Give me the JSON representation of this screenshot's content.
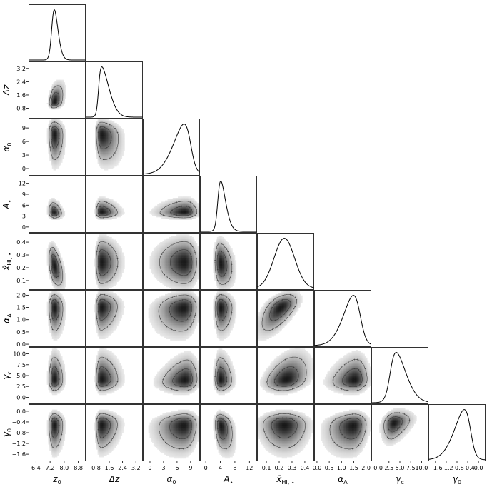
{
  "chart_data": {
    "type": "corner",
    "parameters": [
      {
        "label": "z",
        "sub": "0",
        "ticks": [
          "6.4",
          "7.2",
          "8.0",
          "8.8"
        ],
        "tickvals": [
          6.4,
          7.2,
          8.0,
          8.8
        ],
        "range": [
          6.0,
          9.2
        ],
        "mean": 7.3,
        "sd": 0.28,
        "skew": 2.2
      },
      {
        "label": "Δz",
        "sub": "",
        "ticks": [
          "0.8",
          "1.6",
          "2.4",
          "3.2"
        ],
        "tickvals": [
          0.8,
          1.6,
          2.4,
          3.2
        ],
        "range": [
          0.2,
          3.6
        ],
        "mean": 0.95,
        "sd": 0.55,
        "skew": 5.0
      },
      {
        "label": "α",
        "sub": "0",
        "ticks": [
          "0",
          "3",
          "6",
          "9"
        ],
        "tickvals": [
          0,
          3,
          6,
          9
        ],
        "range": [
          -1.5,
          11.0
        ],
        "mean": 9.0,
        "sd": 3.2,
        "skew": -3.0
      },
      {
        "label": "A",
        "sub": "⋆",
        "ticks": [
          "0",
          "4",
          "8",
          "12"
        ],
        "tickvals": [
          0,
          4,
          8,
          12
        ],
        "range": [
          -1.5,
          14.0
        ],
        "mean": 3.3,
        "sd": 1.8,
        "skew": 3.0
      },
      {
        "label": "x̄",
        "sub": "HI, ⋆",
        "ticks": [
          "0.1",
          "0.2",
          "0.3",
          "0.4"
        ],
        "tickvals": [
          0.1,
          0.2,
          0.3,
          0.4
        ],
        "range": [
          0.03,
          0.47
        ],
        "mean": 0.24,
        "sd": 0.08,
        "skew": 0.0
      },
      {
        "label": "α",
        "sub": "A",
        "ticks": [
          "0.0",
          "0.5",
          "1.0",
          "1.5",
          "2.0"
        ],
        "tickvals": [
          0.0,
          0.5,
          1.0,
          1.5,
          2.0
        ],
        "range": [
          -0.1,
          2.2
        ],
        "mean": 1.75,
        "sd": 0.55,
        "skew": -2.5
      },
      {
        "label": "γ",
        "sub": "c",
        "ticks": [
          "0.0",
          "2.5",
          "5.0",
          "7.5",
          "10.0"
        ],
        "tickvals": [
          0.0,
          2.5,
          5.0,
          7.5,
          10.0
        ],
        "range": [
          -1.5,
          11.5
        ],
        "mean": 2.8,
        "sd": 3.0,
        "skew": 3.0
      },
      {
        "label": "γ",
        "sub": "0",
        "ticks": [
          "−1.6",
          "−1.2",
          "−0.8",
          "−0.4",
          "0.0"
        ],
        "tickvals": [
          -1.6,
          -1.2,
          -0.8,
          -0.4,
          0.0
        ],
        "range": [
          -1.85,
          0.25
        ],
        "mean": -0.3,
        "sd": 0.5,
        "skew": -3.0
      }
    ],
    "y_ticks": {
      "1": [
        "0.8",
        "1.6",
        "2.4",
        "3.2"
      ],
      "2": [
        "0",
        "3",
        "6",
        "9"
      ],
      "3": [
        "0",
        "3",
        "6",
        "9",
        "12"
      ],
      "4": [
        "0.1",
        "0.2",
        "0.3",
        "0.4"
      ],
      "5": [
        "0.0",
        "0.5",
        "1.0",
        "1.5",
        "2.0"
      ],
      "6": [
        "0.0",
        "2.5",
        "5.0",
        "7.5",
        "10.0"
      ],
      "7": [
        "−1.6",
        "−1.2",
        "−0.8",
        "−0.4",
        "0.0"
      ]
    },
    "y_tickvals": {
      "1": [
        0.8,
        1.6,
        2.4,
        3.2
      ],
      "2": [
        0,
        3,
        6,
        9
      ],
      "3": [
        0,
        3,
        6,
        9,
        12
      ],
      "4": [
        0.1,
        0.2,
        0.3,
        0.4
      ],
      "5": [
        0.0,
        0.5,
        1.0,
        1.5,
        2.0
      ],
      "6": [
        0.0,
        2.5,
        5.0,
        7.5,
        10.0
      ],
      "7": [
        -1.6,
        -1.2,
        -0.8,
        -0.4,
        0.0
      ]
    },
    "correlations": {
      "1-0": 0.55,
      "2-0": -0.1,
      "2-1": -0.3,
      "3-0": -0.35,
      "3-1": -0.1,
      "3-2": 0.1,
      "4-0": -0.6,
      "4-1": 0.0,
      "4-2": 0.0,
      "4-3": -0.25,
      "5-0": -0.1,
      "5-1": 0.1,
      "5-2": 0.25,
      "5-3": -0.05,
      "5-4": 0.75,
      "6-0": 0.0,
      "6-1": 0.0,
      "6-2": 0.35,
      "6-3": -0.1,
      "6-4": 0.45,
      "6-5": 0.3,
      "7-0": 0.0,
      "7-1": 0.1,
      "7-2": 0.2,
      "7-3": -0.5,
      "7-4": 0.0,
      "7-5": 0.3,
      "7-6": 0.7
    },
    "contours": "two levels (inner and outer credible regions), grayscale density",
    "grid": false
  }
}
